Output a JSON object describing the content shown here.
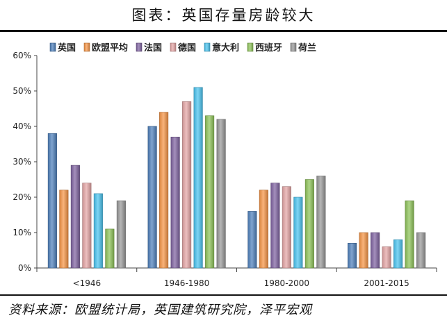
{
  "figure": {
    "title": "图表：英国存量房龄较大",
    "source": "资料来源：欧盟统计局，英国建筑研究院，泽平宏观"
  },
  "colors": {
    "英国": "#4f81bd",
    "欧盟平均": "#f79646",
    "法国": "#8064a2",
    "德国": "#e6a6a6",
    "意大利": "#4bc4f0",
    "西班牙": "#8fc45a",
    "荷兰": "#999999"
  },
  "chart_data": {
    "type": "bar",
    "title": "",
    "xlabel": "",
    "ylabel": "",
    "ylim": [
      0,
      60
    ],
    "yticks": [
      "0%",
      "10%",
      "20%",
      "30%",
      "40%",
      "50%",
      "60%"
    ],
    "legend_position": "top",
    "grid": false,
    "categories": [
      "<1946",
      "1946-1980",
      "1980-2000",
      "2001-2015"
    ],
    "series": [
      {
        "name": "英国",
        "values": [
          38,
          40,
          16,
          7
        ]
      },
      {
        "name": "欧盟平均",
        "values": [
          22,
          44,
          22,
          10
        ]
      },
      {
        "name": "法国",
        "values": [
          29,
          37,
          24,
          10
        ]
      },
      {
        "name": "德国",
        "values": [
          24,
          47,
          23,
          6
        ]
      },
      {
        "name": "意大利",
        "values": [
          21,
          51,
          20,
          8
        ]
      },
      {
        "name": "西班牙",
        "values": [
          11,
          43,
          25,
          19
        ]
      },
      {
        "name": "荷兰",
        "values": [
          19,
          42,
          26,
          10
        ]
      }
    ]
  }
}
